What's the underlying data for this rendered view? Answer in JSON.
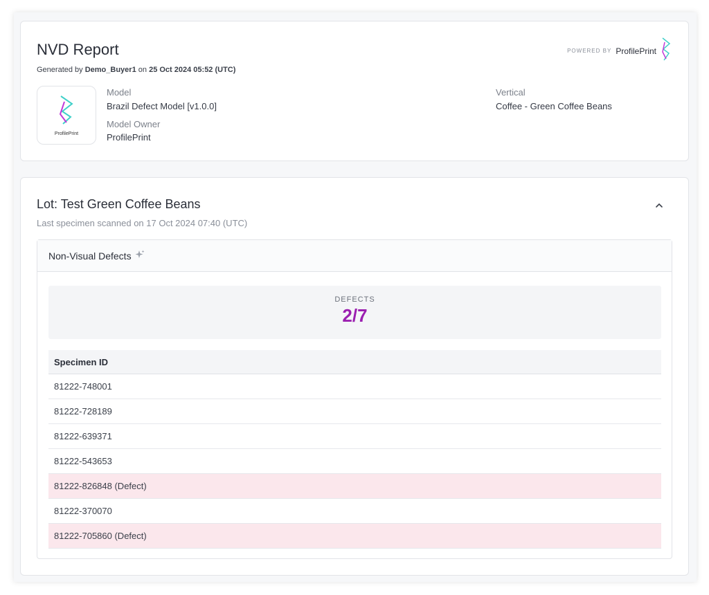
{
  "report": {
    "title": "NVD Report",
    "generated_prefix": "Generated by",
    "generated_user": "Demo_Buyer1",
    "generated_on": "on",
    "generated_date": "25 Oct 2024 05:52 (UTC)",
    "powered_label": "POWERED BY",
    "powered_name": "ProfilePrint",
    "logo_text": "ProfilePrint",
    "model_label": "Model",
    "model_value": "Brazil Defect Model [v1.0.0]",
    "owner_label": "Model Owner",
    "owner_value": "ProfilePrint",
    "vertical_label": "Vertical",
    "vertical_value": "Coffee - Green Coffee Beans"
  },
  "lot": {
    "title": "Lot: Test Green Coffee Beans",
    "subtitle": "Last specimen scanned on 17 Oct 2024 07:40 (UTC)"
  },
  "defects": {
    "panel_title": "Non-Visual Defects",
    "summary_label": "DEFECTS",
    "summary_value": "2/7",
    "table_header": "Specimen ID",
    "rows": [
      {
        "text": "81222-748001",
        "defect": false
      },
      {
        "text": "81222-728189",
        "defect": false
      },
      {
        "text": "81222-639371",
        "defect": false
      },
      {
        "text": "81222-543653",
        "defect": false
      },
      {
        "text": "81222-826848 (Defect)",
        "defect": true
      },
      {
        "text": "81222-370070",
        "defect": false
      },
      {
        "text": "81222-705860 (Defect)",
        "defect": true
      }
    ]
  },
  "icons": {
    "brand_logo": "profileprint-logo-icon",
    "sparkle": "sparkle-icon",
    "collapse": "chevron-up-icon"
  },
  "colors": {
    "accent": "#9b1fb0",
    "defect_row": "#fbe7ec",
    "logo_teal": "#3fd0c9",
    "logo_magenta": "#c13ad8"
  }
}
